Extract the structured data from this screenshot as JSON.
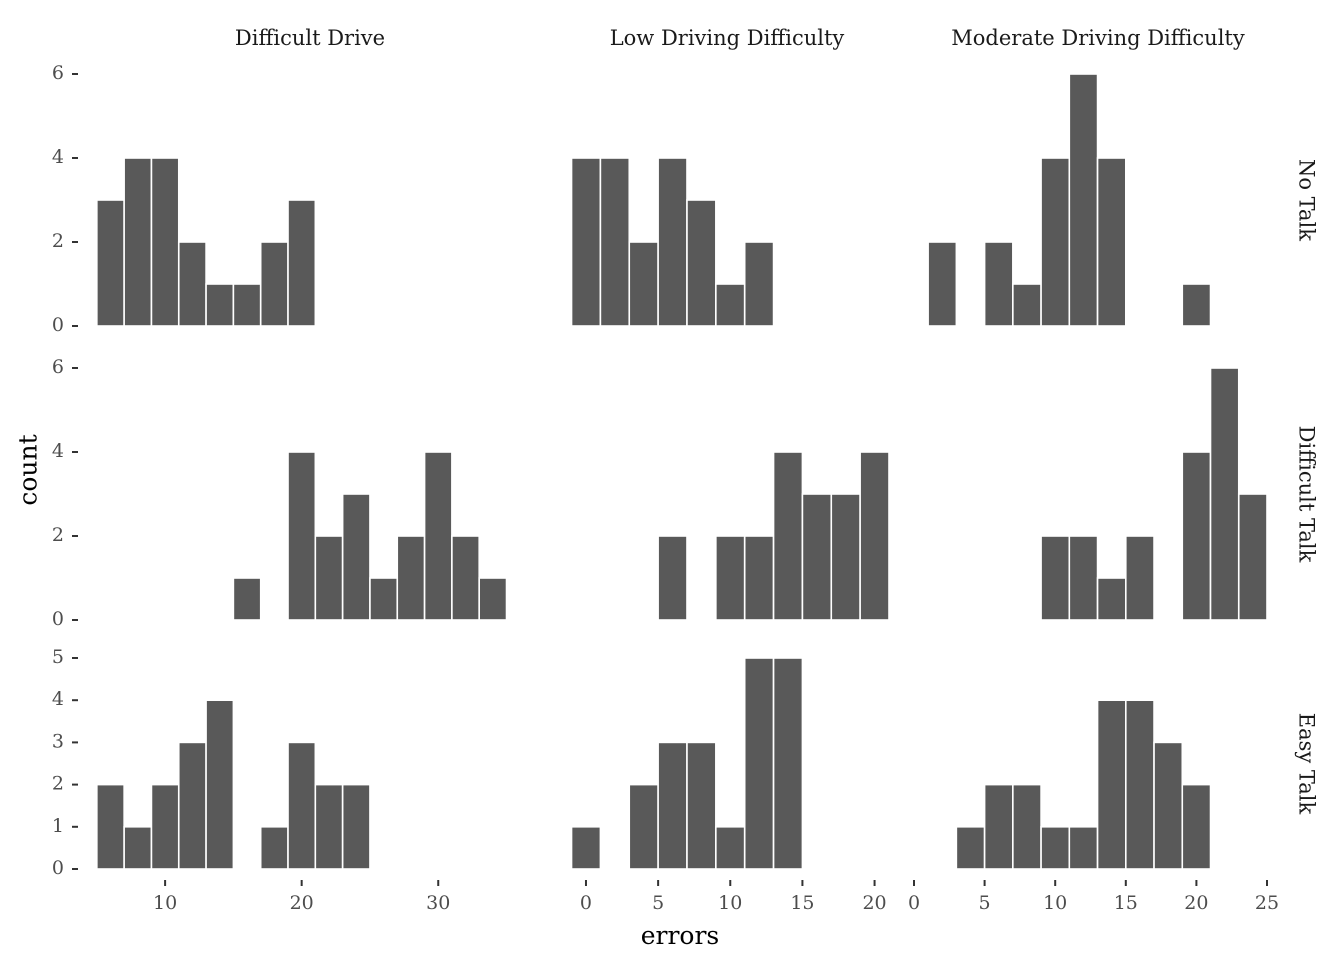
{
  "chart_data": {
    "type": "bar",
    "subtype": "faceted-histogram",
    "bar_color": "#595959",
    "background": "#ffffff",
    "grid": false,
    "xlabel": "errors",
    "ylabel": "count",
    "column_facets": [
      "Difficult Drive",
      "Low Driving Difficulty",
      "Moderate Driving Difficulty"
    ],
    "row_facets": [
      "No Talk",
      "Difficult Talk",
      "Easy Talk"
    ],
    "x_axes": [
      {
        "ticks": [
          10,
          20,
          30
        ],
        "tick_labels": [
          "10",
          "20",
          "30"
        ],
        "xlim": [
          4.5,
          36.5
        ]
      },
      {
        "ticks": [
          0,
          5,
          10,
          15,
          20
        ],
        "tick_labels": [
          "0",
          "5",
          "10",
          "15",
          "20"
        ],
        "xlim": [
          -1.8,
          21.0
        ]
      },
      {
        "ticks": [
          0,
          5,
          10,
          15,
          20,
          25
        ],
        "tick_labels": [
          "0",
          "5",
          "10",
          "15",
          "20",
          "25"
        ],
        "xlim": [
          0,
          25
        ]
      }
    ],
    "y_axes": [
      {
        "ticks": [
          0,
          2,
          4,
          6
        ],
        "tick_labels": [
          "0",
          "2",
          "4",
          "6"
        ],
        "ylim": [
          0,
          6
        ]
      },
      {
        "ticks": [
          0,
          2,
          4,
          6
        ],
        "tick_labels": [
          "0",
          "2",
          "4",
          "6"
        ],
        "ylim": [
          0,
          6
        ]
      },
      {
        "ticks": [
          0,
          1,
          2,
          3,
          4,
          5
        ],
        "tick_labels": [
          "0",
          "1",
          "2",
          "3",
          "4",
          "5"
        ],
        "ylim": [
          0,
          5
        ]
      }
    ],
    "bin_width": [
      2,
      2,
      2
    ],
    "panels": [
      {
        "column": "Difficult Drive",
        "row": "No Talk",
        "bins": [
          6,
          8,
          10,
          12,
          14,
          16,
          18,
          20
        ],
        "counts": [
          3,
          4,
          4,
          2,
          1,
          1,
          2,
          3
        ]
      },
      {
        "column": "Low Driving Difficulty",
        "row": "No Talk",
        "bins": [
          0,
          2,
          4,
          6,
          8,
          10,
          12
        ],
        "counts": [
          4,
          4,
          2,
          4,
          3,
          1,
          2
        ]
      },
      {
        "column": "Moderate Driving Difficulty",
        "row": "No Talk",
        "bins": [
          2,
          6,
          8,
          10,
          12,
          14,
          20
        ],
        "counts": [
          2,
          2,
          1,
          4,
          6,
          4,
          1
        ]
      },
      {
        "column": "Difficult Drive",
        "row": "Difficult Talk",
        "bins": [
          16,
          20,
          22,
          24,
          26,
          28,
          30,
          32,
          34
        ],
        "counts": [
          1,
          4,
          2,
          3,
          1,
          2,
          4,
          2,
          1
        ]
      },
      {
        "column": "Low Driving Difficulty",
        "row": "Difficult Talk",
        "bins": [
          6,
          10,
          12,
          14,
          16,
          18,
          20
        ],
        "counts": [
          2,
          2,
          2,
          4,
          3,
          3,
          4
        ]
      },
      {
        "column": "Moderate Driving Difficulty",
        "row": "Difficult Talk",
        "bins": [
          10,
          12,
          14,
          16,
          20,
          22,
          24
        ],
        "counts": [
          2,
          2,
          1,
          2,
          4,
          6,
          3
        ]
      },
      {
        "column": "Difficult Drive",
        "row": "Easy Talk",
        "bins": [
          6,
          8,
          10,
          12,
          14,
          18,
          20,
          22,
          24
        ],
        "counts": [
          2,
          1,
          2,
          3,
          4,
          1,
          3,
          2,
          2
        ]
      },
      {
        "column": "Low Driving Difficulty",
        "row": "Easy Talk",
        "bins": [
          0,
          4,
          6,
          8,
          10,
          12,
          14
        ],
        "counts": [
          1,
          2,
          3,
          3,
          1,
          5,
          5
        ]
      },
      {
        "column": "Moderate Driving Difficulty",
        "row": "Easy Talk",
        "bins": [
          4,
          6,
          8,
          10,
          12,
          14,
          16,
          18,
          20
        ],
        "counts": [
          1,
          2,
          2,
          1,
          1,
          4,
          4,
          3,
          2
        ]
      }
    ]
  }
}
